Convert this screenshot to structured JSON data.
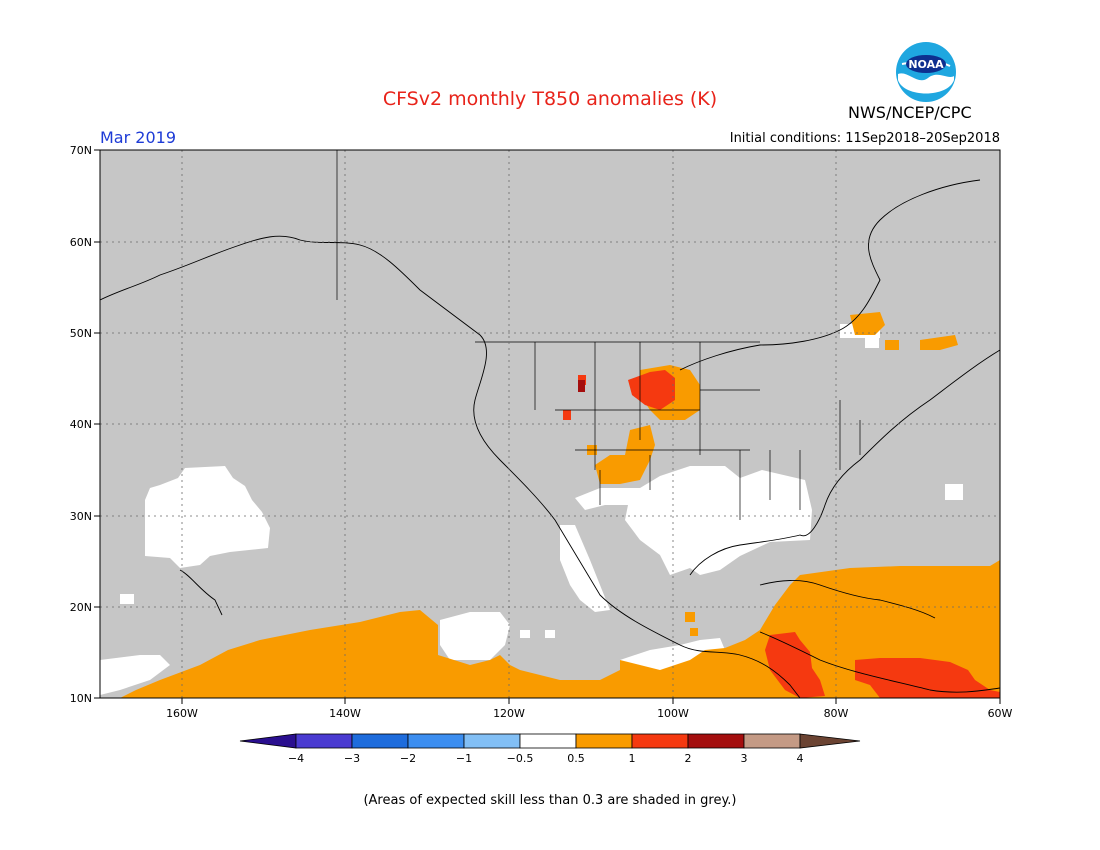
{
  "title": "CFSv2 monthly T850 anomalies (K)",
  "month": "Mar 2019",
  "initial_conditions": "Initial conditions: 11Sep2018–20Sep2018",
  "agency": "NWS/NCEP/CPC",
  "logo_text": "NOAA",
  "latitude_labels": [
    "70N",
    "60N",
    "50N",
    "40N",
    "30N",
    "20N",
    "10N"
  ],
  "longitude_labels": [
    "160W",
    "140W",
    "120W",
    "100W",
    "80W",
    "60W"
  ],
  "colorbar": {
    "labels": [
      "−4",
      "−3",
      "−2",
      "−1",
      "−0.5",
      "0.5",
      "1",
      "2",
      "3",
      "4"
    ],
    "colors": [
      "#2a0f8f",
      "#4a3bd1",
      "#1e6cdc",
      "#3c8ef0",
      "#82bff5",
      "#ffffff",
      "#f99b00",
      "#f53910",
      "#a40e0e",
      "#c49a85",
      "#6b4332"
    ]
  },
  "footnote": "(Areas of expected skill less than 0.3 are shaded in grey.)",
  "colors": {
    "skill_grey": "#c6c6c6",
    "title_red": "#e8231a",
    "month_blue": "#1d3bd6"
  }
}
